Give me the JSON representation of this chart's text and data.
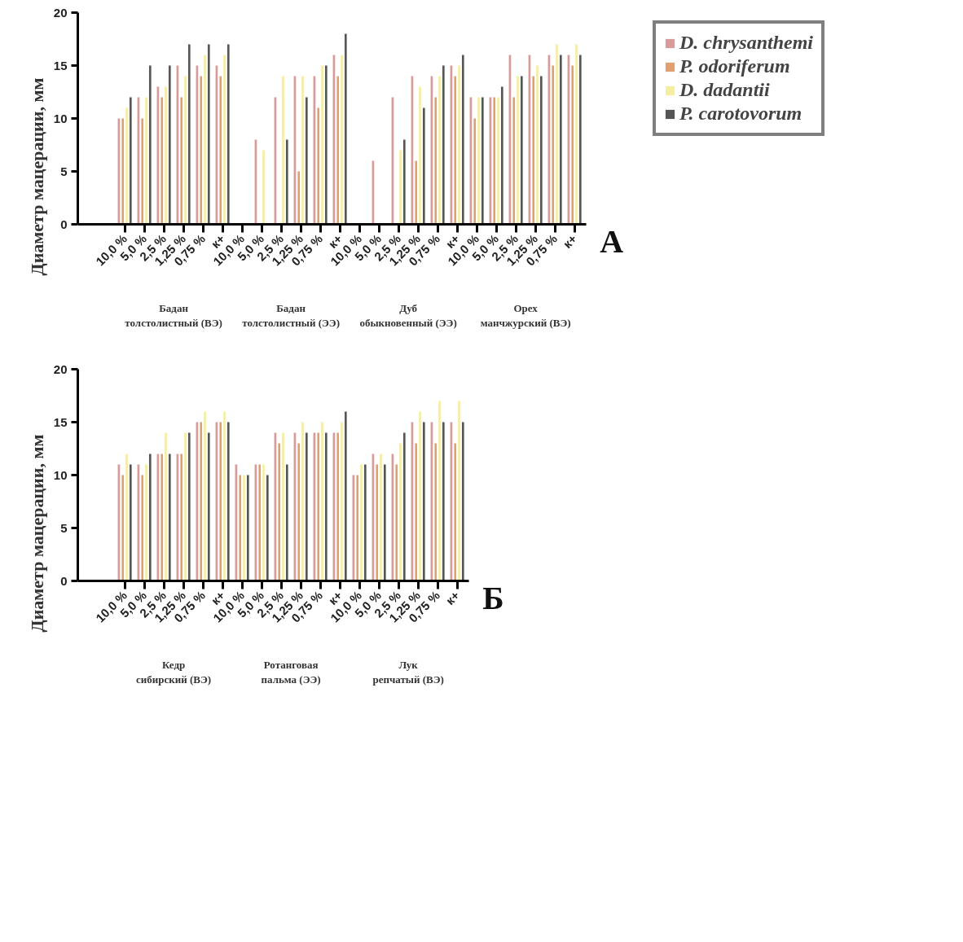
{
  "chart_data": [
    {
      "type": "bar",
      "title": "А",
      "ylabel": "Диаметр мацерации, мм",
      "ylim": [
        0,
        20
      ],
      "yticks": [
        0,
        5,
        10,
        15,
        20
      ],
      "grid": false,
      "legend": "right",
      "categories": [
        "10,0 %",
        "5,0 %",
        "2,5 %",
        "1,25 %",
        "0,75 %",
        "к+",
        "10,0 %",
        "5,0 %",
        "2,5 %",
        "1,25 %",
        "0,75 %",
        "к+",
        "10,0 %",
        "5,0 %",
        "2,5 %",
        "1,25 %",
        "0,75 %",
        "к+",
        "10,0 %",
        "5,0 %",
        "2,5 %",
        "1,25 %",
        "0,75 %",
        "к+"
      ],
      "annotations": [
        "Бадан\nтолстолистный (ВЭ)",
        "Бадан\nтолстолистный (ЭЭ)",
        "Дуб\nобыкновенный (ЭЭ)",
        "Орех\nманчжурский (ВЭ)"
      ],
      "series": [
        {
          "name": "D. chrysanthemi",
          "color": "#d99a9a",
          "values": [
            10,
            12,
            13,
            15,
            15,
            15,
            0,
            8,
            12,
            14,
            14,
            16,
            0,
            6,
            12,
            14,
            14,
            15,
            12,
            12,
            16,
            16,
            16,
            16
          ]
        },
        {
          "name": "P. odoriferum",
          "color": "#e0a070",
          "values": [
            10,
            10,
            12,
            12,
            14,
            14,
            0,
            0,
            0,
            5,
            11,
            14,
            0,
            0,
            0,
            6,
            12,
            14,
            10,
            12,
            12,
            14,
            15,
            15
          ]
        },
        {
          "name": "D. dadantii",
          "color": "#f5eea0",
          "values": [
            11,
            12,
            13,
            14,
            16,
            16,
            0,
            7,
            14,
            14,
            15,
            16,
            0,
            0,
            7,
            13,
            14,
            15,
            12,
            12,
            14,
            15,
            17,
            17
          ]
        },
        {
          "name": "P. carotovorum",
          "color": "#555555",
          "values": [
            12,
            15,
            15,
            17,
            17,
            17,
            0,
            0,
            8,
            12,
            15,
            18,
            0,
            0,
            8,
            11,
            15,
            16,
            12,
            13,
            14,
            14,
            16,
            16
          ]
        }
      ]
    },
    {
      "type": "bar",
      "title": "Б",
      "ylabel": "Диаметр мацерации, мм",
      "ylim": [
        0,
        20
      ],
      "yticks": [
        0,
        5,
        10,
        15,
        20
      ],
      "grid": false,
      "categories": [
        "10,0 %",
        "5,0 %",
        "2,5 %",
        "1,25 %",
        "0,75 %",
        "к+",
        "10,0 %",
        "5,0 %",
        "2,5 %",
        "1,25 %",
        "0,75 %",
        "к+",
        "10,0 %",
        "5,0 %",
        "2,5 %",
        "1,25 %",
        "0,75 %",
        "к+"
      ],
      "annotations": [
        "Кедр\nсибирский (ВЭ)",
        "Ротанговая\nпальма (ЭЭ)",
        "Лук\nрепчатый (ВЭ)"
      ],
      "series": [
        {
          "color": "#d99a9a",
          "values": [
            11,
            11,
            12,
            12,
            15,
            15,
            11,
            11,
            14,
            14,
            14,
            14,
            10,
            12,
            12,
            15,
            15,
            15
          ]
        },
        {
          "color": "#e0a070",
          "values": [
            10,
            10,
            12,
            12,
            15,
            15,
            10,
            11,
            13,
            13,
            14,
            14,
            10,
            11,
            11,
            13,
            13,
            13
          ]
        },
        {
          "color": "#f5eea0",
          "values": [
            12,
            11,
            14,
            14,
            16,
            16,
            10,
            11,
            14,
            15,
            15,
            15,
            11,
            12,
            13,
            16,
            17,
            17
          ]
        },
        {
          "color": "#555555",
          "values": [
            11,
            12,
            12,
            14,
            14,
            15,
            10,
            10,
            11,
            14,
            14,
            16,
            11,
            11,
            14,
            15,
            15,
            15
          ]
        }
      ]
    }
  ]
}
